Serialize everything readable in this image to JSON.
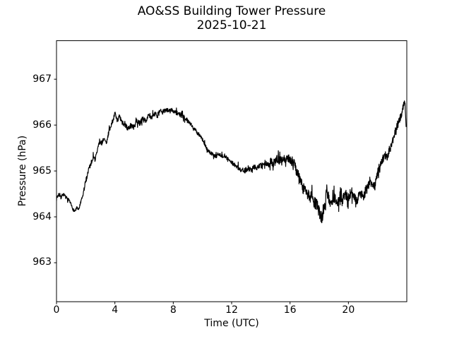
{
  "figure": {
    "background": "#ffffff"
  },
  "chart_data": {
    "type": "line",
    "title": "AO&SS Building Tower Pressure",
    "subtitle": "2025-10-21",
    "xlabel": "Time (UTC)",
    "ylabel": "Pressure (hPa)",
    "xlim": [
      0,
      24
    ],
    "ylim": [
      962.15,
      967.84
    ],
    "xticks": [
      0,
      4,
      8,
      12,
      16,
      20
    ],
    "yticks": [
      963,
      964,
      965,
      966,
      967
    ],
    "grid": false,
    "legend": "none",
    "line_color": "#000000",
    "axis_color": "#000000",
    "line_width": 1.2,
    "series": [
      {
        "name": "pressure",
        "points": [
          [
            0.0,
            964.42
          ],
          [
            0.15,
            964.48
          ],
          [
            0.3,
            964.42
          ],
          [
            0.45,
            964.5
          ],
          [
            0.6,
            964.44
          ],
          [
            0.8,
            964.38
          ],
          [
            0.95,
            964.3
          ],
          [
            1.1,
            964.18
          ],
          [
            1.25,
            964.12
          ],
          [
            1.4,
            964.2
          ],
          [
            1.5,
            964.14
          ],
          [
            1.65,
            964.3
          ],
          [
            1.8,
            964.45
          ],
          [
            1.95,
            964.7
          ],
          [
            2.1,
            964.9
          ],
          [
            2.2,
            965.05
          ],
          [
            2.35,
            965.15
          ],
          [
            2.5,
            965.3
          ],
          [
            2.65,
            965.25
          ],
          [
            2.8,
            965.45
          ],
          [
            2.95,
            965.65
          ],
          [
            3.1,
            965.6
          ],
          [
            3.25,
            965.7
          ],
          [
            3.4,
            965.6
          ],
          [
            3.55,
            965.8
          ],
          [
            3.7,
            965.95
          ],
          [
            3.85,
            966.1
          ],
          [
            4.0,
            966.25
          ],
          [
            4.15,
            966.1
          ],
          [
            4.3,
            966.18
          ],
          [
            4.5,
            966.05
          ],
          [
            4.7,
            966.0
          ],
          [
            4.9,
            965.92
          ],
          [
            5.1,
            966.0
          ],
          [
            5.3,
            965.95
          ],
          [
            5.5,
            966.08
          ],
          [
            5.7,
            966.04
          ],
          [
            5.9,
            966.14
          ],
          [
            6.1,
            966.1
          ],
          [
            6.3,
            966.2
          ],
          [
            6.5,
            966.15
          ],
          [
            6.7,
            966.25
          ],
          [
            6.9,
            966.2
          ],
          [
            7.1,
            966.3
          ],
          [
            7.3,
            966.28
          ],
          [
            7.5,
            966.35
          ],
          [
            7.7,
            966.3
          ],
          [
            7.9,
            966.33
          ],
          [
            8.1,
            966.28
          ],
          [
            8.35,
            966.25
          ],
          [
            8.6,
            966.2
          ],
          [
            8.85,
            966.15
          ],
          [
            9.1,
            966.05
          ],
          [
            9.3,
            965.98
          ],
          [
            9.5,
            965.9
          ],
          [
            9.7,
            965.82
          ],
          [
            9.9,
            965.75
          ],
          [
            10.1,
            965.62
          ],
          [
            10.3,
            965.48
          ],
          [
            10.5,
            965.4
          ],
          [
            10.7,
            965.36
          ],
          [
            10.9,
            965.32
          ],
          [
            11.1,
            965.38
          ],
          [
            11.3,
            965.32
          ],
          [
            11.5,
            965.34
          ],
          [
            11.7,
            965.27
          ],
          [
            11.9,
            965.22
          ],
          [
            12.1,
            965.15
          ],
          [
            12.3,
            965.1
          ],
          [
            12.5,
            965.06
          ],
          [
            12.7,
            965.02
          ],
          [
            12.9,
            965.0
          ],
          [
            13.1,
            965.06
          ],
          [
            13.3,
            965.02
          ],
          [
            13.5,
            965.1
          ],
          [
            13.7,
            965.07
          ],
          [
            13.9,
            965.12
          ],
          [
            14.1,
            965.1
          ],
          [
            14.3,
            965.18
          ],
          [
            14.5,
            965.14
          ],
          [
            14.7,
            965.21
          ],
          [
            14.9,
            965.17
          ],
          [
            15.1,
            965.27
          ],
          [
            15.3,
            965.21
          ],
          [
            15.5,
            965.29
          ],
          [
            15.7,
            965.24
          ],
          [
            15.9,
            965.27
          ],
          [
            16.1,
            965.2
          ],
          [
            16.3,
            965.12
          ],
          [
            16.5,
            964.98
          ],
          [
            16.7,
            964.8
          ],
          [
            16.9,
            964.62
          ],
          [
            17.1,
            964.55
          ],
          [
            17.3,
            964.45
          ],
          [
            17.5,
            964.42
          ],
          [
            17.7,
            964.3
          ],
          [
            17.9,
            964.22
          ],
          [
            18.05,
            964.05
          ],
          [
            18.2,
            963.98
          ],
          [
            18.35,
            964.2
          ],
          [
            18.5,
            964.6
          ],
          [
            18.65,
            964.42
          ],
          [
            18.8,
            964.3
          ],
          [
            19.0,
            964.42
          ],
          [
            19.2,
            964.3
          ],
          [
            19.4,
            964.45
          ],
          [
            19.6,
            964.35
          ],
          [
            19.8,
            964.5
          ],
          [
            20.0,
            964.4
          ],
          [
            20.2,
            964.55
          ],
          [
            20.4,
            964.42
          ],
          [
            20.6,
            964.38
          ],
          [
            20.8,
            964.52
          ],
          [
            21.0,
            964.45
          ],
          [
            21.2,
            964.58
          ],
          [
            21.4,
            964.68
          ],
          [
            21.6,
            964.78
          ],
          [
            21.8,
            964.65
          ],
          [
            22.0,
            964.95
          ],
          [
            22.2,
            965.15
          ],
          [
            22.35,
            965.25
          ],
          [
            22.5,
            965.35
          ],
          [
            22.65,
            965.3
          ],
          [
            22.8,
            965.45
          ],
          [
            23.0,
            965.6
          ],
          [
            23.2,
            965.85
          ],
          [
            23.35,
            966.0
          ],
          [
            23.5,
            966.1
          ],
          [
            23.65,
            966.25
          ],
          [
            23.78,
            966.45
          ],
          [
            23.87,
            966.52
          ],
          [
            23.93,
            966.15
          ],
          [
            23.97,
            965.9
          ]
        ]
      }
    ],
    "noise": {
      "seed": 7,
      "dt_hours": 0.0166667,
      "spike_prob": 0.08,
      "spike_mult": 2.3,
      "segments": [
        {
          "t0": 0,
          "t1": 1.8,
          "amp": 0.035
        },
        {
          "t0": 1.8,
          "t1": 3.9,
          "amp": 0.055
        },
        {
          "t0": 3.9,
          "t1": 9.0,
          "amp": 0.055
        },
        {
          "t0": 9.0,
          "t1": 12.0,
          "amp": 0.04
        },
        {
          "t0": 12.0,
          "t1": 14.5,
          "amp": 0.055
        },
        {
          "t0": 14.5,
          "t1": 16.1,
          "amp": 0.09
        },
        {
          "t0": 16.1,
          "t1": 19.6,
          "amp": 0.13
        },
        {
          "t0": 19.6,
          "t1": 22.3,
          "amp": 0.11
        },
        {
          "t0": 22.3,
          "t1": 23.6,
          "amp": 0.09
        },
        {
          "t0": 23.6,
          "t1": 24.0,
          "amp": 0.07
        }
      ]
    }
  }
}
